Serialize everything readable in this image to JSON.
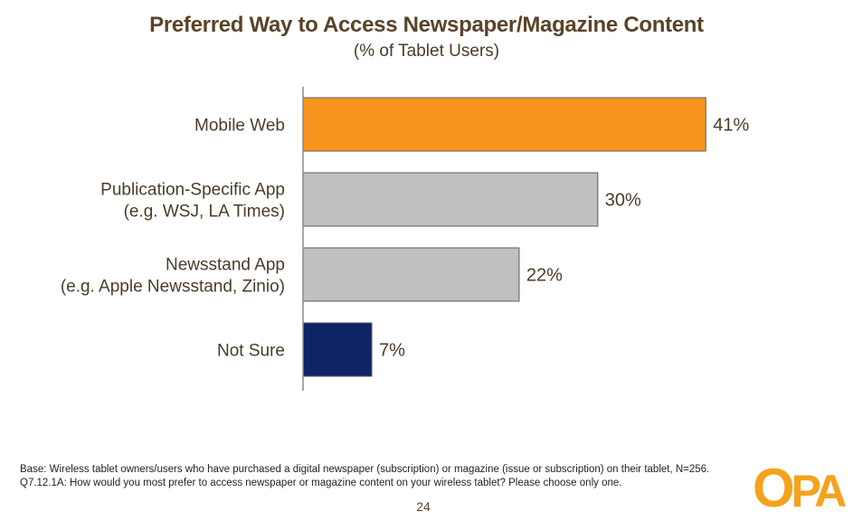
{
  "chart_data": {
    "type": "bar",
    "orientation": "horizontal",
    "title": "Preferred Way to Access Newspaper/Magazine Content",
    "subtitle": "(% of Tablet Users)",
    "categories": [
      [
        "Mobile Web"
      ],
      [
        "Publication-Specific App",
        "(e.g. WSJ, LA Times)"
      ],
      [
        "Newsstand App",
        "(e.g. Apple Newsstand, Zinio)"
      ],
      [
        "Not Sure"
      ]
    ],
    "values": [
      41,
      30,
      22,
      7
    ],
    "value_labels": [
      "41%",
      "30%",
      "22%",
      "7%"
    ],
    "colors": [
      "#f7941d",
      "#c0c0c0",
      "#c0c0c0",
      "#0f2466"
    ],
    "xlim": [
      0,
      50
    ],
    "grid": false,
    "legend": "none"
  },
  "footnote": "Base:  Wireless tablet owners/users who have purchased a digital newspaper (subscription) or magazine (issue or subscription) on their tablet, N=256.  Q7.12.1A:  How would you most prefer to access newspaper or magazine content on your wireless tablet? Please choose only one.",
  "page_number": "24",
  "logo": {
    "text": "OPA",
    "color": "#f5a21c"
  }
}
